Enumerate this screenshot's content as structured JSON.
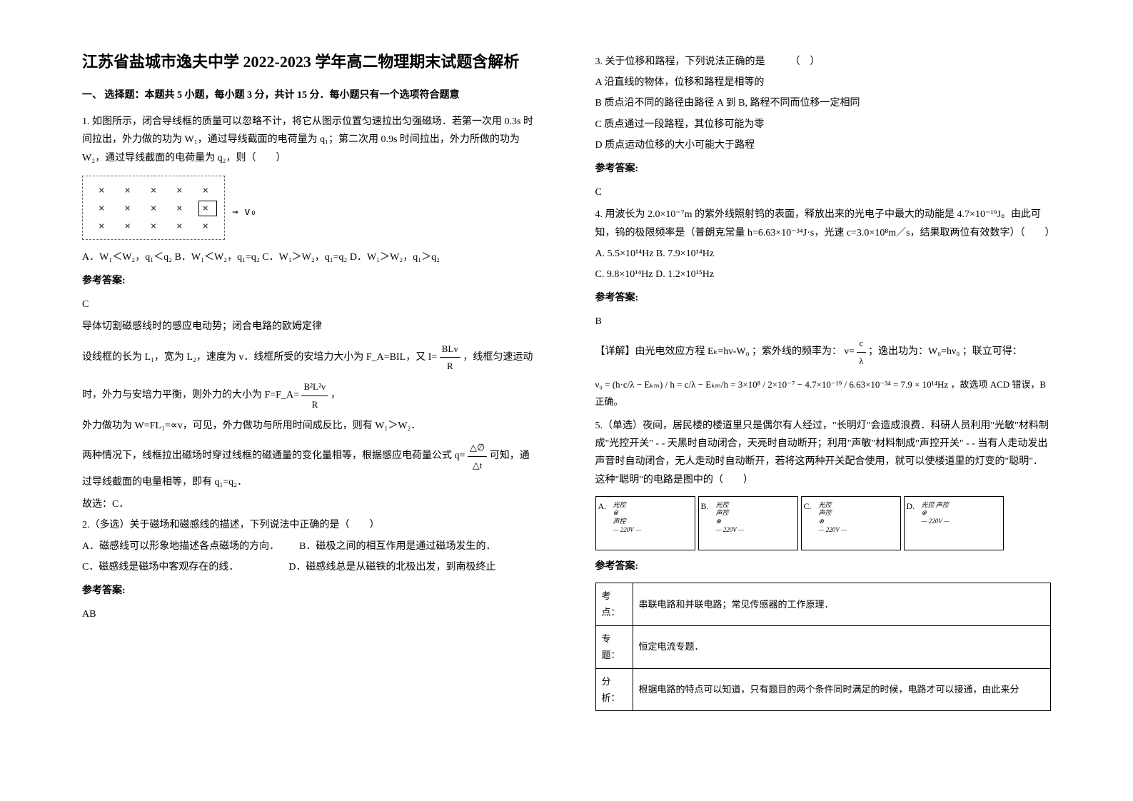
{
  "title": "江苏省盐城市逸夫中学 2022-2023 学年高二物理期末试题含解析",
  "section1": "一、 选择题：本题共 5 小题，每小题 3 分，共计 15 分．每小题只有一个选项符合题意",
  "q1": {
    "stem": "1. 如图所示，闭合导线框的质量可以忽略不计，将它从图示位置匀速拉出匀强磁场．若第一次用 0.3s 时间拉出，外力做的功为 W₁，通过导线截面的电荷量为 q₁；第二次用 0.9s 时间拉出，外力所做的功为 W₂，通过导线截面的电荷量为 q₂，则（　　）",
    "options": "A．W₁＜W₂，q₁＜q₂  B．W₁＜W₂，q₁=q₂  C．W₁＞W₂，q₁=q₂  D．W₁＞W₂，q₁＞q₂",
    "answer_header": "参考答案:",
    "answer_letter": "C",
    "expl1": "导体切割磁感线时的感应电动势；闭合电路的欧姆定律",
    "expl2_pre": "设线框的长为 L₁，宽为 L₂，速度为 v．线框所受的安培力大小为 F_A=BIL，又 I= ",
    "expl2_post": " ，线框匀速运动",
    "expl3_pre": "时，外力与安培力平衡，则外力的大小为 F=F_A= ",
    "expl3_post": " ，",
    "expl4": "外力做功为 W=FL₁=∝v，可见，外力做功与所用时间成反比，则有 W₁＞W₂．",
    "expl5_pre": "两种情况下，线框拉出磁场时穿过线框的磁通量的变化量相等，根据感应电荷量公式 q= ",
    "expl5_post": "可知，通过导线截面的电量相等，即有 q₁=q₂．",
    "conclusion": "故选：C．",
    "frac1_num": "BLv",
    "frac1_den": "R",
    "frac2_num": "B²L²v",
    "frac2_den": "R",
    "frac3_num": "△∅",
    "frac3_den": "△t"
  },
  "q2": {
    "stem": "2.（多选）关于磁场和磁感线的描述，下列说法中正确的是（　　）",
    "optA": "A．磁感线可以形象地描述各点磁场的方向．",
    "optB": "B．磁极之间的相互作用是通过磁场发生的．",
    "optC": "C．磁感线是磁场中客观存在的线．",
    "optD": "D．磁感线总是从磁铁的北极出发，到南极终止",
    "answer_header": "参考答案:",
    "answer_letter": "AB"
  },
  "q3": {
    "stem": "3. 关于位移和路程，下列说法正确的是　　　（　）",
    "optA": "A 沿直线的物体，位移和路程是相等的",
    "optB": "B 质点沿不同的路径由路径 A 到 B, 路程不同而位移一定相同",
    "optC": "C 质点通过一段路程，其位移可能为零",
    "optD": "D 质点运动位移的大小可能大于路程",
    "answer_header": "参考答案:",
    "answer_letter": "C"
  },
  "q4": {
    "stem": "4. 用波长为 2.0×10⁻⁷m 的紫外线照射钨的表面，释放出来的光电子中最大的动能是 4.7×10⁻¹⁹J。由此可知，钨的极限频率是（普朗克常量 h=6.63×10⁻³⁴J·s，光速 c=3.0×10⁸m／s，结果取两位有效数字）（　　）",
    "optA": "A. 5.5×10¹⁴Hz",
    "optB": "B. 7.9×10¹⁴Hz",
    "optC": "C. 9.8×10¹⁴Hz",
    "optD": "D. 1.2×10¹⁵Hz",
    "answer_header": "参考答案:",
    "answer_letter": "B",
    "detail_pre": "【详解】由光电效应方程 Eₖ=hν-W₀ ；紫外线的频率为：",
    "detail_mid": "；逸出功为：W₀=hν₀ ；联立可得：",
    "formula_result": "，故选项 ACD 错误，B 正确。",
    "nu_frac_num": "c",
    "nu_frac_den": "λ",
    "nu_eq": "ν=",
    "big_formula": "ν₀ = (h·c/λ − Eₖₘ) / h = c/λ − Eₖₘ/h = 3×10⁸ / 2×10⁻⁷ − 4.7×10⁻¹⁹ / 6.63×10⁻³⁴ = 7.9 × 10¹⁴Hz"
  },
  "q5": {
    "stem": "5.（单选）夜间，居民楼的楼道里只是偶尔有人经过，\"长明灯\"会造成浪费．科研人员利用\"光敏\"材料制成\"光控开关\" - - 天黑时自动闭合，天亮时自动断开；利用\"声敏\"材料制成\"声控开关\" - - 当有人走动发出声音时自动闭合，无人走动时自动断开，若将这两种开关配合使用，就可以使楼道里的灯变的\"聪明\"．这种\"聪明\"的电路是图中的（　　）",
    "answer_header": "参考答案:",
    "circuitA": {
      "label": "A.",
      "l1": "光控",
      "l2": "声控",
      "l3": "— 220V —"
    },
    "circuitB": {
      "label": "B.",
      "l1": "光控",
      "l2": "声控",
      "l3": "— 220V —"
    },
    "circuitC": {
      "label": "C.",
      "l1": "光控",
      "l2": "声控",
      "l3": "— 220V —"
    },
    "circuitD": {
      "label": "D.",
      "l1": "光控  声控",
      "l2": "",
      "l3": "— 220V —"
    }
  },
  "table": {
    "r1c1": "考点：",
    "r1c2": "串联电路和并联电路；常见传感器的工作原理．",
    "r2c1": "专题：",
    "r2c2": "恒定电流专题．",
    "r3c1": "分析：",
    "r3c2": "根据电路的特点可以知道，只有题目的两个条件同时满足的时候，电路才可以接通，由此来分"
  },
  "diagram": {
    "arrow": "→ v₀"
  }
}
